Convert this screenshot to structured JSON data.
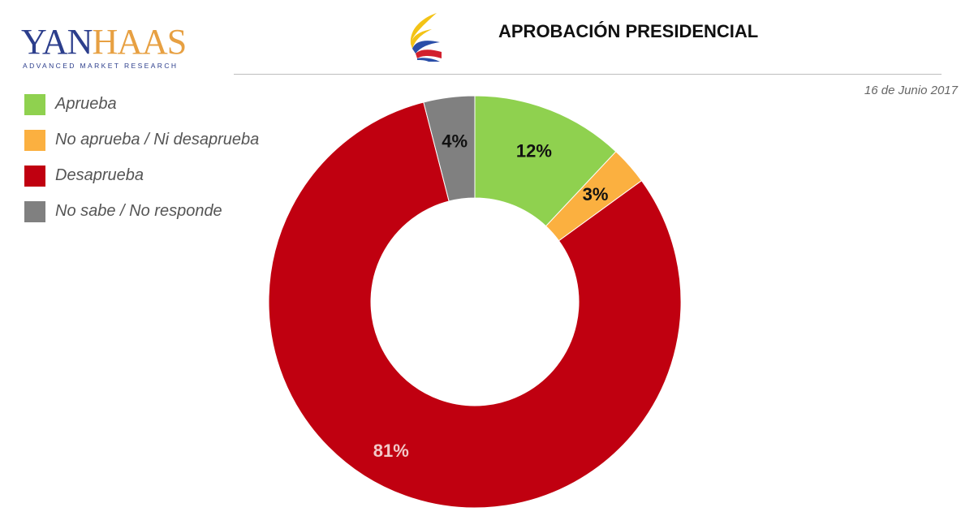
{
  "logo": {
    "brand_part1": "YAN",
    "brand_part2": "HAAS",
    "tagline": "ADVANCED MARKET RESEARCH"
  },
  "header": {
    "title": "APROBACIÓN PRESIDENCIAL",
    "date": "16 de Junio 2017"
  },
  "colors": {
    "aprueba": "#8fd14f",
    "neutral": "#fbb040",
    "desaprueba": "#c00010",
    "nsnr": "#808080"
  },
  "legend": [
    {
      "label": "Aprueba",
      "color": "#8fd14f"
    },
    {
      "label": "No aprueba / Ni desaprueba",
      "color": "#fbb040"
    },
    {
      "label": "Desaprueba",
      "color": "#c00010"
    },
    {
      "label": "No sabe /  No responde",
      "color": "#808080"
    }
  ],
  "chart_data": {
    "type": "pie",
    "donut": true,
    "categories": [
      "Aprueba",
      "No aprueba / Ni desaprueba",
      "Desaprueba",
      "No sabe /  No responde"
    ],
    "values": [
      12,
      3,
      81,
      4
    ],
    "labels": [
      "12%",
      "3%",
      "81%",
      "4%"
    ],
    "colors": [
      "#8fd14f",
      "#fbb040",
      "#c00010",
      "#808080"
    ],
    "label_colors": [
      "#111111",
      "#111111",
      "#f2c9c9",
      "#111111"
    ]
  }
}
